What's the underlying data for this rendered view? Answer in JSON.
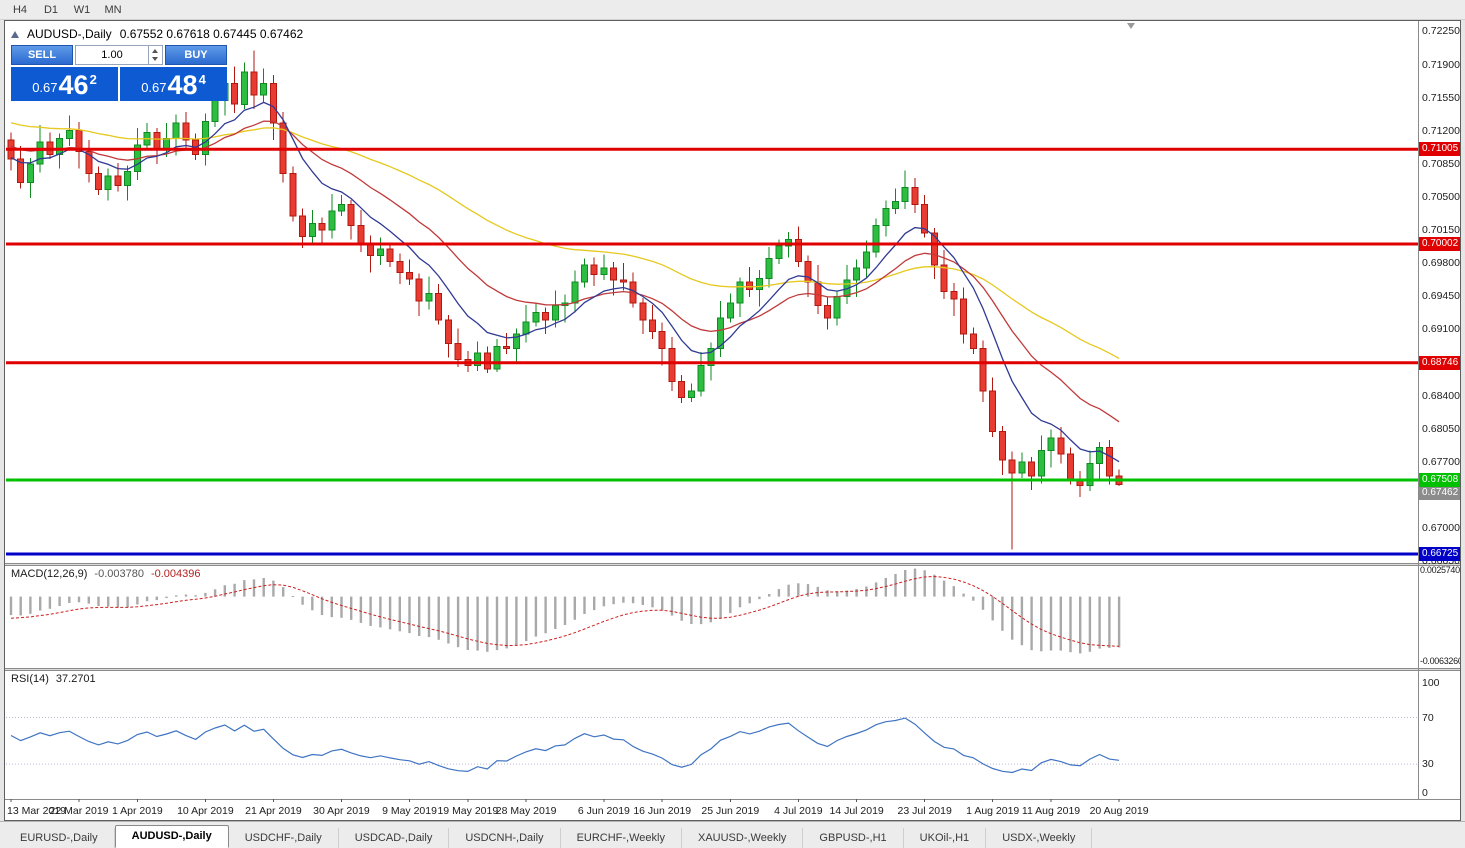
{
  "toolbar": {
    "timeframes": [
      "H4",
      "D1",
      "W1",
      "MN"
    ]
  },
  "chart": {
    "title": "AUDUSD-,Daily",
    "ohlc_text": "0.67552 0.67618 0.67445 0.67462"
  },
  "one_click": {
    "sell_label": "SELL",
    "buy_label": "BUY",
    "volume": "1.00",
    "sell_price": {
      "prefix": "0.67",
      "big": "46",
      "sup": "2"
    },
    "buy_price": {
      "prefix": "0.67",
      "big": "48",
      "sup": "4"
    }
  },
  "price_axis": {
    "labels": [
      "0.72250",
      "0.71900",
      "0.71550",
      "0.71200",
      "0.70850",
      "0.70500",
      "0.70150",
      "0.69800",
      "0.69450",
      "0.69100",
      "0.68750",
      "0.68400",
      "0.68050",
      "0.67700",
      "0.67350",
      "0.67000",
      "0.66650"
    ]
  },
  "bid_tag": {
    "label": "0.67462",
    "color": "#8c8c8c"
  },
  "colors": {
    "up": "#2dbe41",
    "up_border": "#0e8a20",
    "down": "#e83b32",
    "down_border": "#b01810"
  },
  "chart_data": {
    "type": "candlestick",
    "symbol": "AUDUSD-",
    "timeframe": "Daily",
    "ylim": [
      0.6663,
      0.7236
    ],
    "moving_averages": [
      {
        "period": 50,
        "color": "#e6c81e",
        "seed": 0.713
      },
      {
        "period": 20,
        "color": "#c03a3a",
        "seed": 0.7105
      },
      {
        "period": 9,
        "color": "#303a94",
        "seed": 0.7092
      }
    ],
    "horizontal_lines": [
      {
        "price": 0.71005,
        "label": "0.71005",
        "color": "#e00000",
        "width": 3
      },
      {
        "price": 0.70002,
        "label": "0.70002",
        "color": "#e00000",
        "width": 3
      },
      {
        "price": 0.68746,
        "label": "0.68746",
        "color": "#e00000",
        "width": 3
      },
      {
        "price": 0.67508,
        "label": "0.67508",
        "color": "#00c000",
        "width": 3
      },
      {
        "price": 0.66725,
        "label": "0.66725",
        "color": "#0000c8",
        "width": 3
      }
    ],
    "x_labels": [
      [
        "13 Mar 2019",
        0
      ],
      [
        "22 Mar 2019",
        7
      ],
      [
        "1 Apr 2019",
        13
      ],
      [
        "10 Apr 2019",
        20
      ],
      [
        "21 Apr 2019",
        27
      ],
      [
        "30 Apr 2019",
        34
      ],
      [
        "9 May 2019",
        41
      ],
      [
        "19 May 2019",
        47
      ],
      [
        "28 May 2019",
        53
      ],
      [
        "6 Jun 2019",
        61
      ],
      [
        "16 Jun 2019",
        67
      ],
      [
        "25 Jun 2019",
        74
      ],
      [
        "4 Jul 2019",
        81
      ],
      [
        "14 Jul 2019",
        87
      ],
      [
        "23 Jul 2019",
        94
      ],
      [
        "1 Aug 2019",
        101
      ],
      [
        "11 Aug 2019",
        107
      ],
      [
        "20 Aug 2019",
        114
      ]
    ],
    "ohlc": [
      [
        0.711,
        0.7118,
        0.7078,
        0.709
      ],
      [
        0.709,
        0.7104,
        0.7059,
        0.7065
      ],
      [
        0.7065,
        0.7091,
        0.7049,
        0.7085
      ],
      [
        0.7085,
        0.7126,
        0.7076,
        0.7108
      ],
      [
        0.7108,
        0.7118,
        0.709,
        0.7095
      ],
      [
        0.7095,
        0.7117,
        0.708,
        0.7112
      ],
      [
        0.7112,
        0.7136,
        0.7104,
        0.712
      ],
      [
        0.712,
        0.7129,
        0.708,
        0.7098
      ],
      [
        0.7098,
        0.711,
        0.7065,
        0.7075
      ],
      [
        0.7075,
        0.7082,
        0.7052,
        0.7058
      ],
      [
        0.7058,
        0.708,
        0.7046,
        0.7072
      ],
      [
        0.7072,
        0.7086,
        0.7056,
        0.7062
      ],
      [
        0.7062,
        0.7083,
        0.7046,
        0.7077
      ],
      [
        0.7077,
        0.7123,
        0.7068,
        0.7105
      ],
      [
        0.7105,
        0.7128,
        0.71,
        0.7118
      ],
      [
        0.7118,
        0.7123,
        0.7085,
        0.71
      ],
      [
        0.71,
        0.7128,
        0.7092,
        0.7112
      ],
      [
        0.7112,
        0.7137,
        0.7094,
        0.7128
      ],
      [
        0.7128,
        0.714,
        0.71,
        0.711
      ],
      [
        0.711,
        0.7117,
        0.7089,
        0.7095
      ],
      [
        0.7095,
        0.7138,
        0.7083,
        0.713
      ],
      [
        0.713,
        0.7166,
        0.7124,
        0.7152
      ],
      [
        0.7152,
        0.7176,
        0.7136,
        0.717
      ],
      [
        0.717,
        0.7188,
        0.7139,
        0.7148
      ],
      [
        0.7148,
        0.7192,
        0.7143,
        0.7182
      ],
      [
        0.7182,
        0.7205,
        0.7143,
        0.7158
      ],
      [
        0.7158,
        0.7186,
        0.715,
        0.717
      ],
      [
        0.717,
        0.7179,
        0.711,
        0.7128
      ],
      [
        0.7128,
        0.714,
        0.7065,
        0.7075
      ],
      [
        0.7075,
        0.7082,
        0.7024,
        0.703
      ],
      [
        0.703,
        0.7038,
        0.6996,
        0.7008
      ],
      [
        0.7008,
        0.7036,
        0.7002,
        0.7022
      ],
      [
        0.7022,
        0.7028,
        0.6999,
        0.7015
      ],
      [
        0.7015,
        0.7053,
        0.7006,
        0.7035
      ],
      [
        0.7035,
        0.7052,
        0.703,
        0.7042
      ],
      [
        0.7042,
        0.7047,
        0.7005,
        0.702
      ],
      [
        0.702,
        0.7036,
        0.6992,
        0.7
      ],
      [
        0.7,
        0.7009,
        0.697,
        0.6988
      ],
      [
        0.6988,
        0.7007,
        0.6978,
        0.6995
      ],
      [
        0.6995,
        0.7002,
        0.6976,
        0.6982
      ],
      [
        0.6982,
        0.699,
        0.6958,
        0.697
      ],
      [
        0.697,
        0.6984,
        0.6957,
        0.6963
      ],
      [
        0.6963,
        0.6969,
        0.6924,
        0.694
      ],
      [
        0.694,
        0.6966,
        0.6931,
        0.6948
      ],
      [
        0.6948,
        0.6958,
        0.6915,
        0.692
      ],
      [
        0.692,
        0.6925,
        0.688,
        0.6895
      ],
      [
        0.6895,
        0.6911,
        0.687,
        0.6878
      ],
      [
        0.6878,
        0.6887,
        0.6865,
        0.6872
      ],
      [
        0.6872,
        0.6897,
        0.6866,
        0.6885
      ],
      [
        0.6885,
        0.6892,
        0.6864,
        0.6868
      ],
      [
        0.6868,
        0.69,
        0.6865,
        0.6892
      ],
      [
        0.6892,
        0.6906,
        0.6884,
        0.689
      ],
      [
        0.689,
        0.6911,
        0.6874,
        0.6905
      ],
      [
        0.6905,
        0.6936,
        0.6896,
        0.6918
      ],
      [
        0.6918,
        0.6938,
        0.6913,
        0.6928
      ],
      [
        0.6928,
        0.6933,
        0.6905,
        0.692
      ],
      [
        0.692,
        0.6951,
        0.6912,
        0.6935
      ],
      [
        0.6935,
        0.6947,
        0.6917,
        0.6938
      ],
      [
        0.6938,
        0.6972,
        0.6928,
        0.696
      ],
      [
        0.696,
        0.6985,
        0.6954,
        0.6978
      ],
      [
        0.6978,
        0.6986,
        0.6956,
        0.6968
      ],
      [
        0.6968,
        0.6989,
        0.6962,
        0.6975
      ],
      [
        0.6975,
        0.6981,
        0.6946,
        0.6962
      ],
      [
        0.6962,
        0.698,
        0.6951,
        0.696
      ],
      [
        0.696,
        0.697,
        0.6933,
        0.6938
      ],
      [
        0.6938,
        0.6943,
        0.6905,
        0.692
      ],
      [
        0.692,
        0.6936,
        0.69,
        0.6908
      ],
      [
        0.6908,
        0.6917,
        0.6872,
        0.689
      ],
      [
        0.689,
        0.6902,
        0.6845,
        0.6855
      ],
      [
        0.6855,
        0.6862,
        0.6832,
        0.6838
      ],
      [
        0.6838,
        0.6853,
        0.6833,
        0.6845
      ],
      [
        0.6845,
        0.6886,
        0.6839,
        0.6872
      ],
      [
        0.6872,
        0.6896,
        0.6856,
        0.689
      ],
      [
        0.689,
        0.694,
        0.6881,
        0.6922
      ],
      [
        0.6922,
        0.6948,
        0.6917,
        0.6938
      ],
      [
        0.6938,
        0.6965,
        0.6923,
        0.696
      ],
      [
        0.696,
        0.6976,
        0.6944,
        0.6952
      ],
      [
        0.6952,
        0.6973,
        0.6934,
        0.6964
      ],
      [
        0.6964,
        0.6997,
        0.6954,
        0.6985
      ],
      [
        0.6985,
        0.7005,
        0.6979,
        0.6998
      ],
      [
        0.6998,
        0.7013,
        0.6986,
        0.7005
      ],
      [
        0.7005,
        0.7019,
        0.6976,
        0.6982
      ],
      [
        0.6982,
        0.6988,
        0.6944,
        0.696
      ],
      [
        0.696,
        0.6978,
        0.6926,
        0.6935
      ],
      [
        0.6935,
        0.6945,
        0.691,
        0.6922
      ],
      [
        0.6922,
        0.695,
        0.6914,
        0.6945
      ],
      [
        0.6945,
        0.6978,
        0.6937,
        0.6962
      ],
      [
        0.6962,
        0.6984,
        0.6944,
        0.6975
      ],
      [
        0.6975,
        0.7004,
        0.6965,
        0.6992
      ],
      [
        0.6992,
        0.7027,
        0.6986,
        0.702
      ],
      [
        0.702,
        0.7046,
        0.7008,
        0.7038
      ],
      [
        0.7038,
        0.7059,
        0.7032,
        0.7045
      ],
      [
        0.7045,
        0.7078,
        0.7037,
        0.706
      ],
      [
        0.706,
        0.707,
        0.7033,
        0.7042
      ],
      [
        0.7042,
        0.7052,
        0.7007,
        0.7012
      ],
      [
        0.7012,
        0.7017,
        0.6963,
        0.6978
      ],
      [
        0.6978,
        0.6994,
        0.6942,
        0.695
      ],
      [
        0.695,
        0.6959,
        0.6924,
        0.6942
      ],
      [
        0.6942,
        0.6954,
        0.6895,
        0.6905
      ],
      [
        0.6905,
        0.6912,
        0.6884,
        0.689
      ],
      [
        0.689,
        0.6898,
        0.6833,
        0.6845
      ],
      [
        0.6845,
        0.6859,
        0.6796,
        0.6802
      ],
      [
        0.6802,
        0.6808,
        0.6756,
        0.6772
      ],
      [
        0.6772,
        0.6781,
        0.66775,
        0.6758
      ],
      [
        0.6758,
        0.678,
        0.6753,
        0.677
      ],
      [
        0.677,
        0.6775,
        0.674,
        0.6755
      ],
      [
        0.6755,
        0.6798,
        0.6747,
        0.6782
      ],
      [
        0.6782,
        0.6804,
        0.6764,
        0.6795
      ],
      [
        0.6795,
        0.6807,
        0.6768,
        0.6778
      ],
      [
        0.6778,
        0.6785,
        0.6746,
        0.6752
      ],
      [
        0.6752,
        0.676,
        0.6733,
        0.6745
      ],
      [
        0.6745,
        0.6782,
        0.6739,
        0.6768
      ],
      [
        0.6768,
        0.6791,
        0.6752,
        0.6785
      ],
      [
        0.6785,
        0.6793,
        0.6746,
        0.6755
      ],
      [
        0.67552,
        0.67618,
        0.67445,
        0.67462
      ]
    ]
  },
  "macd": {
    "label": "MACD(12,26,9)",
    "value": "-0.003780",
    "signal_value": "-0.004396",
    "fast": 12,
    "slow": 26,
    "signal": 9,
    "ylim": [
      -0.007,
      0.003
    ],
    "axis_max": "0.0025740",
    "axis_min": "-0.0063260",
    "histogram_color": "#a9a9a9",
    "signal_color": "#cc2020",
    "seeds": {
      "ema12": 0.7085,
      "ema26": 0.7105,
      "signal": -0.0022
    }
  },
  "rsi": {
    "label": "RSI(14)",
    "value": "37.2701",
    "period": 14,
    "ylim": [
      0,
      110
    ],
    "levels": [
      100,
      70,
      30,
      0
    ],
    "level_lines": [
      70,
      30
    ],
    "color": "#3f74c2",
    "seeds": {
      "gain": 0.0012,
      "loss": 0.001
    }
  },
  "tabs": [
    {
      "label": "EURUSD-,Daily",
      "active": false
    },
    {
      "label": "AUDUSD-,Daily",
      "active": true
    },
    {
      "label": "USDCHF-,Daily",
      "active": false
    },
    {
      "label": "USDCAD-,Daily",
      "active": false
    },
    {
      "label": "USDCNH-,Daily",
      "active": false
    },
    {
      "label": "EURCHF-,Weekly",
      "active": false
    },
    {
      "label": "XAUUSD-,Weekly",
      "active": false
    },
    {
      "label": "GBPUSD-,H1",
      "active": false
    },
    {
      "label": "UKOil-,H1",
      "active": false
    },
    {
      "label": "USDX-,Weekly",
      "active": false
    }
  ]
}
